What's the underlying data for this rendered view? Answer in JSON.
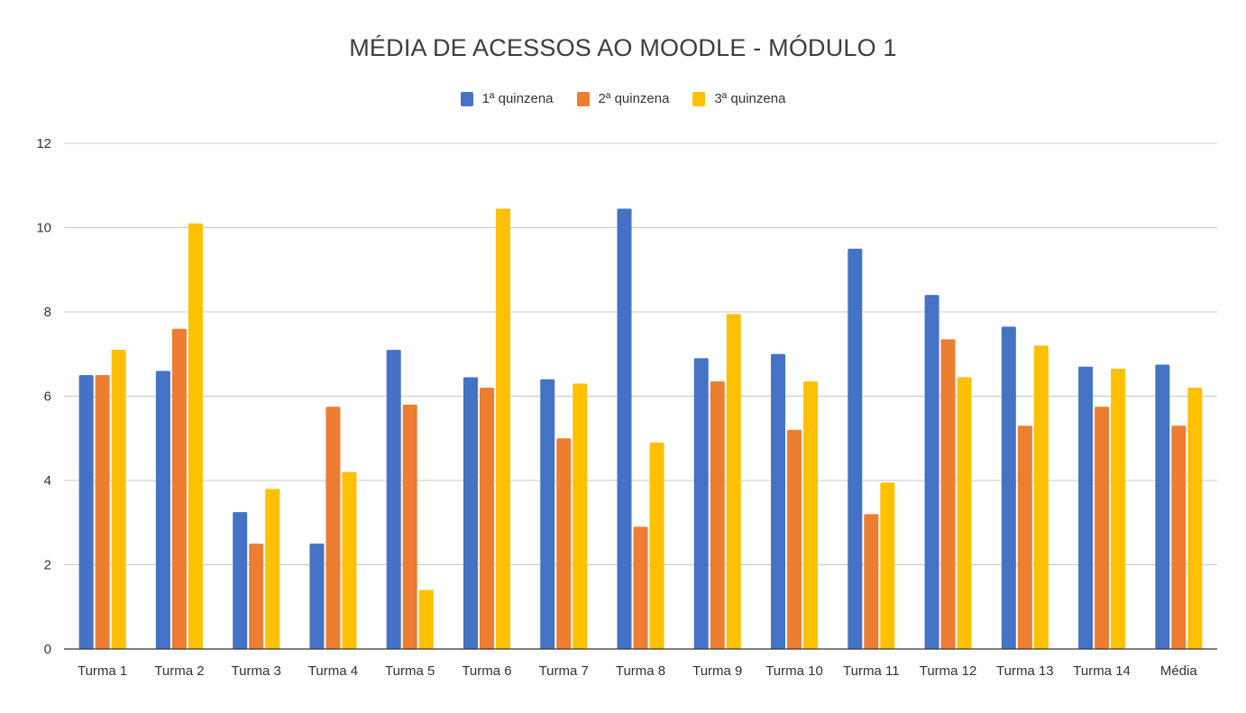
{
  "chart_data": {
    "type": "bar",
    "title": "MÉDIA DE ACESSOS AO MOODLE - MÓDULO 1",
    "xlabel": "",
    "ylabel": "",
    "ylim": [
      0,
      12
    ],
    "yticks": [
      0,
      2,
      4,
      6,
      8,
      10,
      12
    ],
    "grid": true,
    "legend_position": "top-center",
    "categories": [
      "Turma 1",
      "Turma 2",
      "Turma 3",
      "Turma 4",
      "Turma 5",
      "Turma 6",
      "Turma 7",
      "Turma 8",
      "Turma 9",
      "Turma 10",
      "Turma 11",
      "Turma 12",
      "Turma 13",
      "Turma 14",
      "Média"
    ],
    "series": [
      {
        "name": "1ª quinzena",
        "color": "#4472c4",
        "values": [
          6.5,
          6.6,
          3.25,
          2.5,
          7.1,
          6.45,
          6.4,
          10.45,
          6.9,
          7.0,
          9.5,
          8.4,
          7.65,
          6.7,
          6.75
        ]
      },
      {
        "name": "2ª quinzena",
        "color": "#ed7d31",
        "values": [
          6.5,
          7.6,
          2.5,
          5.75,
          5.8,
          6.2,
          5.0,
          2.9,
          6.35,
          5.2,
          3.2,
          7.35,
          5.3,
          5.75,
          5.3
        ]
      },
      {
        "name": "3ª quinzena",
        "color": "#ffc000",
        "values": [
          7.1,
          10.1,
          3.8,
          4.2,
          1.4,
          10.45,
          6.3,
          4.9,
          7.95,
          6.35,
          3.95,
          6.45,
          7.2,
          6.65,
          6.2
        ]
      }
    ]
  }
}
